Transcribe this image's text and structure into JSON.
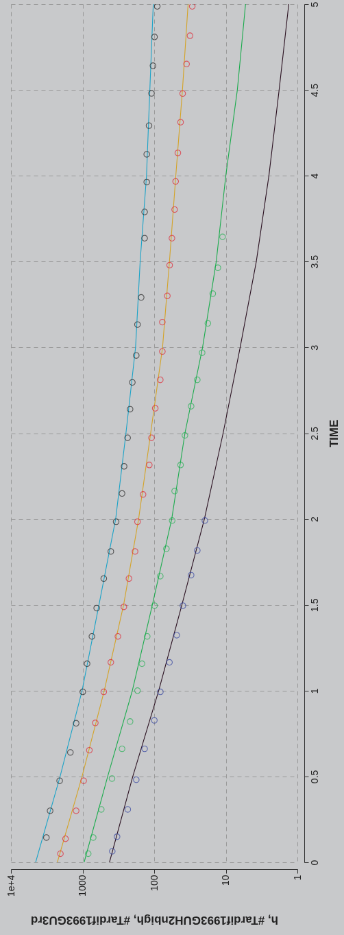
{
  "chart_data": {
    "type": "line",
    "orientation": "horizontal",
    "log": "x",
    "xlabel": "h, #Tardif1993GUH2nbigh, #Tardif1993GU3rd",
    "ylabel": "TIME",
    "xlim": [
      10000,
      1
    ],
    "xticks": [
      {
        "value": 10000,
        "label": "1e+4"
      },
      1000,
      100,
      10,
      1
    ],
    "ylim": [
      0,
      5
    ],
    "yticks": [
      0,
      0.5,
      1,
      1.5,
      2,
      2.5,
      3,
      3.5,
      4,
      4.5,
      5
    ],
    "grid": true,
    "series": [
      {
        "type": "line",
        "color": "#1aa3c8",
        "marker": "none",
        "line_style": "solid",
        "x": [
          0,
          0.5,
          1,
          1.5,
          2,
          2.5,
          3,
          3.5,
          4,
          4.5,
          5
        ],
        "values": [
          4520,
          2060,
          1016,
          590,
          345,
          248,
          182,
          157,
          128,
          115,
          103
        ]
      },
      {
        "type": "line",
        "color": "#d4a327",
        "marker": "none",
        "line_style": "solid",
        "x": [
          0,
          0.5,
          1,
          1.5,
          2,
          2.5,
          3,
          3.5,
          4,
          4.5,
          5
        ],
        "values": [
          2250,
          1016,
          498,
          267,
          165,
          112,
          76.4,
          61.2,
          49.9,
          40.3,
          33.6
        ]
      },
      {
        "type": "line",
        "color": "#1aab4c",
        "marker": "none",
        "line_style": "solid",
        "x": [
          0,
          0.5,
          1,
          1.5,
          2,
          2.5,
          3,
          3.5,
          4,
          4.5,
          5
        ],
        "values": [
          951,
          446,
          202,
          106,
          56.9,
          37.2,
          21.1,
          13.6,
          10.0,
          6.9,
          5.3
        ]
      },
      {
        "type": "line",
        "color": "#2a1020",
        "marker": "none",
        "line_style": "solid",
        "x": [
          0,
          0.5,
          1,
          1.5,
          2,
          2.5,
          3,
          3.5,
          4,
          4.5,
          5
        ],
        "values": [
          421,
          199,
          86.5,
          41,
          19.9,
          10.9,
          6.3,
          3.75,
          2.5,
          1.8,
          1.32
        ]
      },
      {
        "type": "scatter",
        "color": "#202020",
        "marker": "circle",
        "x": [
          0.144,
          0.3,
          0.475,
          0.64,
          0.81,
          0.993,
          1.157,
          1.316,
          1.481,
          1.653,
          1.811,
          1.984,
          2.149,
          2.307,
          2.473,
          2.64,
          2.796,
          2.953,
          3.133,
          3.291,
          3.636,
          3.789,
          3.963,
          4.125,
          4.292,
          4.48,
          4.641,
          4.809,
          4.987
        ],
        "values": [
          3200,
          2840,
          2090,
          1480,
          1230,
          993,
          865,
          741,
          635,
          506,
          403,
          340,
          281,
          263,
          235,
          217,
          202,
          178,
          171,
          152,
          136,
          136,
          127,
          127,
          118,
          109,
          104,
          98.9,
          90.6
        ]
      },
      {
        "type": "scatter",
        "color": "#e0202e",
        "marker": "circle",
        "x": [
          0.05,
          0.137,
          0.3,
          0.475,
          0.653,
          0.812,
          0.993,
          1.165,
          1.316,
          1.488,
          1.653,
          1.811,
          1.984,
          2.143,
          2.315,
          2.473,
          2.645,
          2.811,
          2.976,
          3.147,
          3.3,
          3.479,
          3.636,
          3.803,
          3.967,
          4.133,
          4.312,
          4.479,
          4.651,
          4.816,
          4.987
        ],
        "values": [
          2040,
          1730,
          1230,
          966,
          804,
          664,
          506,
          403,
          321,
          265,
          225,
          185,
          171,
          143,
          117,
          109,
          96.6,
          82.2,
          76.9,
          76.9,
          65.5,
          60.8,
          56.5,
          51.8,
          50.2,
          46.7,
          42.8,
          40.0,
          35.3,
          31.6,
          29.4
        ]
      },
      {
        "type": "scatter",
        "color": "#20b050",
        "marker": "circle",
        "x": [
          0.05,
          0.144,
          0.308,
          0.488,
          0.661,
          0.82,
          1.0,
          1.157,
          1.316,
          1.495,
          1.667,
          1.827,
          1.991,
          2.163,
          2.315,
          2.487,
          2.657,
          2.811,
          2.969,
          3.14,
          3.313,
          3.464,
          3.644
        ],
        "values": [
          834,
          710,
          548,
          388,
          281,
          217,
          171,
          148,
          125,
          98.9,
          82.2,
          67.5,
          56.1,
          51.8,
          42.8,
          37.2,
          30.5,
          25.0,
          21.4,
          17.8,
          15.2,
          12.9,
          11.1
        ]
      },
      {
        "type": "scatter",
        "color": "#3040a0",
        "marker": "circle",
        "x": [
          0.064,
          0.149,
          0.308,
          0.481,
          0.661,
          0.827,
          0.993,
          1.165,
          1.323,
          1.495,
          1.673,
          1.817,
          1.991
        ],
        "values": [
          385,
          330,
          234,
          178,
          136,
          99.5,
          82,
          61.2,
          48.4,
          39.7,
          30.5,
          25.0,
          19.6
        ]
      }
    ]
  }
}
